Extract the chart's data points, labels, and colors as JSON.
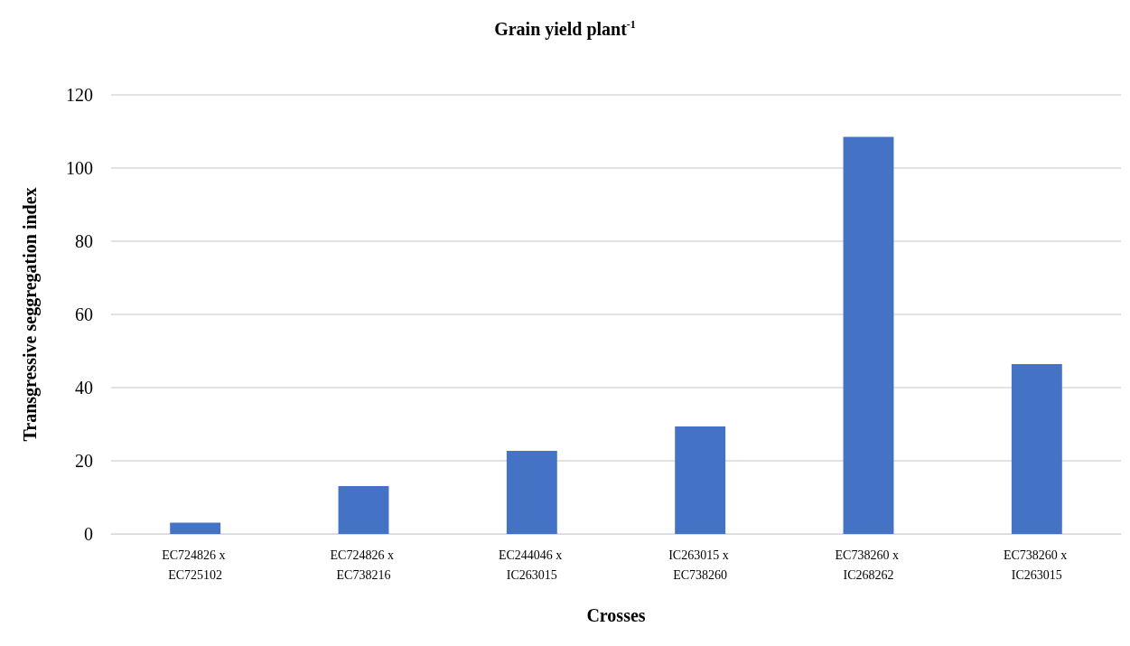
{
  "chart_data": {
    "type": "bar",
    "title": "Grain yield plant$^{-1}$",
    "xlabel": "Crosses",
    "ylabel": "Transgressive seggregation index",
    "categories": [
      "EC724826 x EC725102",
      "EC724826 x EC738216",
      "EC244046 x IC263015",
      "IC263015 x EC738260",
      "EC738260 x IC268262",
      "EC738260 x IC263015"
    ],
    "values": [
      3.1,
      13.1,
      22.7,
      29.4,
      108.5,
      46.4
    ],
    "color": "#4472c4",
    "ylim": [
      0,
      120
    ],
    "yticks": [
      0,
      20,
      40,
      60,
      80,
      100,
      120
    ],
    "grid": "y"
  }
}
